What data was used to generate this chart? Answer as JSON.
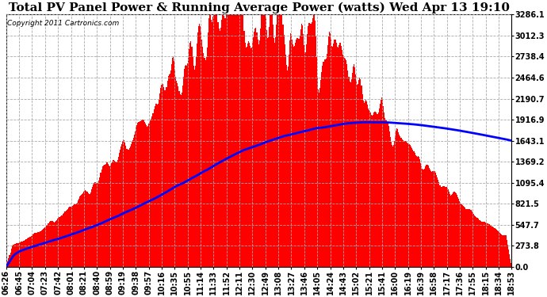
{
  "title": "Total PV Panel Power & Running Average Power (watts) Wed Apr 13 19:10",
  "copyright": "Copyright 2011 Cartronics.com",
  "yticks": [
    0.0,
    273.8,
    547.7,
    821.5,
    1095.4,
    1369.2,
    1643.1,
    1916.9,
    2190.7,
    2464.6,
    2738.4,
    3012.3,
    3286.1
  ],
  "ylim": [
    0,
    3286.1
  ],
  "xtick_labels": [
    "06:26",
    "06:45",
    "07:04",
    "07:23",
    "07:42",
    "08:01",
    "08:21",
    "08:40",
    "08:59",
    "09:19",
    "09:38",
    "09:57",
    "10:16",
    "10:35",
    "10:55",
    "11:14",
    "11:33",
    "11:52",
    "12:11",
    "12:30",
    "12:49",
    "13:08",
    "13:27",
    "13:46",
    "14:05",
    "14:24",
    "14:43",
    "15:02",
    "15:21",
    "15:41",
    "16:00",
    "16:19",
    "16:39",
    "16:58",
    "17:17",
    "17:36",
    "17:55",
    "18:15",
    "18:34",
    "18:53"
  ],
  "bar_color": "#FF0000",
  "line_color": "#0000FF",
  "background_color": "#FFFFFF",
  "grid_color": "#AAAAAA",
  "title_fontsize": 11,
  "copyright_fontsize": 6.5,
  "tick_fontsize": 7,
  "figwidth": 6.9,
  "figheight": 3.75,
  "dpi": 100
}
